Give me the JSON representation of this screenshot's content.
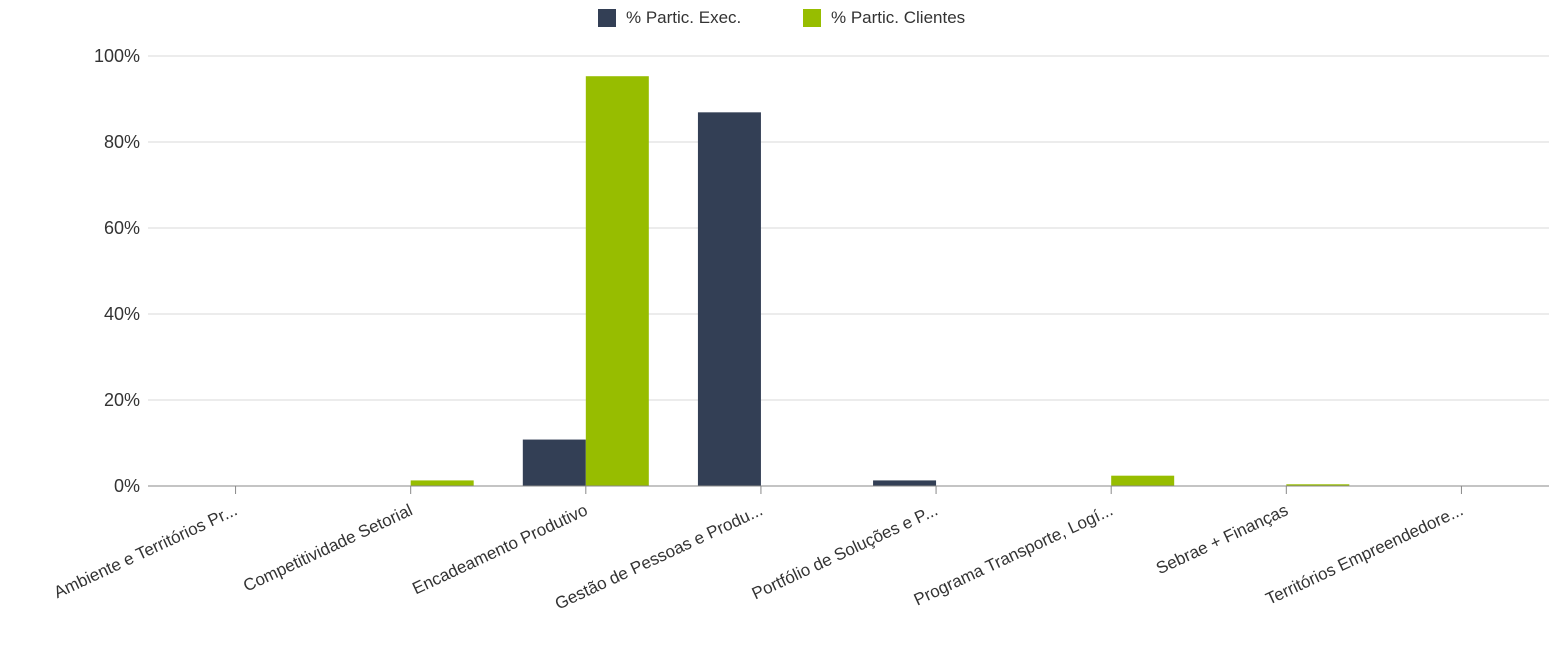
{
  "chart_data": {
    "type": "bar",
    "categories": [
      "Ambiente e Territórios Pr...",
      "Competitividade Setorial",
      "Encadeamento Produtivo",
      "Gestão de Pessoas e Produ...",
      "Portfólio de Soluções e P...",
      "Programa Transporte, Logí...",
      "Sebrae + Finanças",
      "Territórios Empreendedore..."
    ],
    "series": [
      {
        "name": "% Partic. Exec.",
        "color": "#333f55",
        "values": [
          0,
          0,
          10.8,
          86.9,
          1.3,
          0,
          0,
          0
        ]
      },
      {
        "name": "% Partic. Clientes",
        "color": "#97bd00",
        "values": [
          0,
          1.3,
          95.3,
          0,
          0,
          2.4,
          0.4,
          0
        ]
      }
    ],
    "yticks": [
      "0%",
      "20%",
      "40%",
      "60%",
      "80%",
      "100%"
    ],
    "ylim": [
      0,
      100
    ],
    "grid": true,
    "legend_position": "top-center"
  }
}
